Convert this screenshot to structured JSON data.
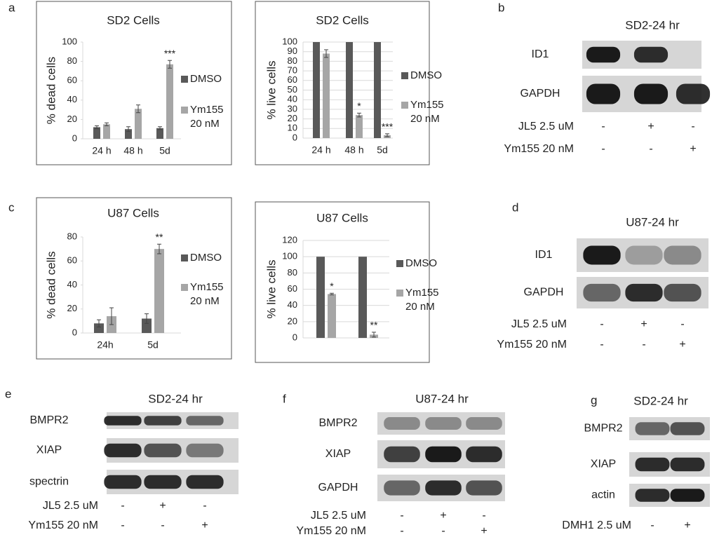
{
  "chart_data": [
    {
      "type": "bar",
      "panel": "a",
      "title": "SD2 Cells",
      "ylabel": "% dead cells",
      "categories": [
        "24 h",
        "48 h",
        "5d"
      ],
      "series": [
        {
          "name": "DMSO",
          "color": "#595959",
          "values": [
            12,
            10,
            11
          ],
          "errors": [
            1.5,
            2.5,
            1.5
          ]
        },
        {
          "name": "Ym155 20 nM",
          "color": "#a6a6a6",
          "values": [
            15,
            31,
            77
          ],
          "errors": [
            1.5,
            4,
            4
          ],
          "labels": [
            null,
            null,
            "***"
          ]
        }
      ],
      "ylim": [
        0,
        100
      ],
      "yticks": [
        0,
        20,
        40,
        60,
        80,
        100
      ],
      "grid": false
    },
    {
      "type": "bar",
      "title": "SD2 Cells",
      "ylabel": "% live cells",
      "categories": [
        "24 h",
        "48 h",
        "5d"
      ],
      "series": [
        {
          "name": "DMSO",
          "color": "#595959",
          "values": [
            100,
            100,
            100
          ]
        },
        {
          "name": "Ym155 20 nM",
          "color": "#a6a6a6",
          "values": [
            88,
            24,
            3
          ],
          "errors": [
            4,
            2,
            1.5
          ],
          "labels": [
            null,
            "*",
            "***"
          ]
        }
      ],
      "ylim": [
        0,
        100
      ],
      "yticks": [
        0,
        10,
        20,
        30,
        40,
        50,
        60,
        70,
        80,
        90,
        100
      ],
      "grid": true
    },
    {
      "type": "bar",
      "panel": "c",
      "title": "U87 Cells",
      "ylabel": "% dead cells",
      "categories": [
        "24h",
        "5d"
      ],
      "series": [
        {
          "name": "DMSO",
          "color": "#595959",
          "values": [
            8,
            12
          ],
          "errors": [
            3,
            4
          ]
        },
        {
          "name": "Ym155 20 nM",
          "color": "#a6a6a6",
          "values": [
            14,
            70
          ],
          "errors": [
            7,
            4
          ],
          "labels": [
            null,
            "**"
          ]
        }
      ],
      "ylim": [
        0,
        80
      ],
      "yticks": [
        0,
        20,
        40,
        60,
        80
      ],
      "grid": false
    },
    {
      "type": "bar",
      "title": "U87 Cells",
      "ylabel": "% live cells",
      "categories": [
        null,
        null
      ],
      "series": [
        {
          "name": "DMSO",
          "color": "#595959",
          "values": [
            100,
            100
          ]
        },
        {
          "name": "Ym155 20 nM",
          "color": "#a6a6a6",
          "values": [
            54,
            4
          ],
          "errors": [
            1,
            3
          ],
          "labels": [
            "*",
            "**"
          ]
        }
      ],
      "ylim": [
        0,
        120
      ],
      "yticks": [
        0,
        20,
        40,
        60,
        80,
        100,
        120
      ],
      "grid": true
    }
  ],
  "blots": [
    {
      "panel": "b",
      "title": "SD2-24 hr",
      "rows": [
        "ID1",
        "GAPDH"
      ],
      "conditions": [
        {
          "name": "JL5 2.5 uM",
          "marks": [
            "-",
            "+",
            "-"
          ]
        },
        {
          "name": "Ym155 20 nM",
          "marks": [
            "-",
            "-",
            "+"
          ]
        }
      ]
    },
    {
      "panel": "d",
      "title": "U87-24 hr",
      "rows": [
        "ID1",
        "GAPDH"
      ],
      "conditions": [
        {
          "name": "JL5 2.5 uM",
          "marks": [
            "-",
            "+",
            "-"
          ]
        },
        {
          "name": "Ym155 20 nM",
          "marks": [
            "-",
            "-",
            "+"
          ]
        }
      ]
    },
    {
      "panel": "e",
      "title": "SD2-24 hr",
      "rows": [
        "BMPR2",
        "XIAP",
        "spectrin"
      ],
      "conditions": [
        {
          "name": "JL5 2.5 uM",
          "marks": [
            "-",
            "+",
            "-"
          ]
        },
        {
          "name": "Ym155 20 nM",
          "marks": [
            "-",
            "-",
            "+"
          ]
        }
      ]
    },
    {
      "panel": "f",
      "title": "U87-24 hr",
      "rows": [
        "BMPR2",
        "XIAP",
        "GAPDH"
      ],
      "conditions": [
        {
          "name": "JL5 2.5 uM",
          "marks": [
            "-",
            "+",
            "-"
          ]
        },
        {
          "name": "Ym155 20 nM",
          "marks": [
            "-",
            "-",
            "+"
          ]
        }
      ]
    },
    {
      "panel": "g",
      "title": "SD2-24 hr",
      "rows": [
        "BMPR2",
        "XIAP",
        "actin"
      ],
      "conditions": [
        {
          "name": "DMH1 2.5 uM",
          "marks": [
            "-",
            "+"
          ]
        }
      ]
    }
  ]
}
